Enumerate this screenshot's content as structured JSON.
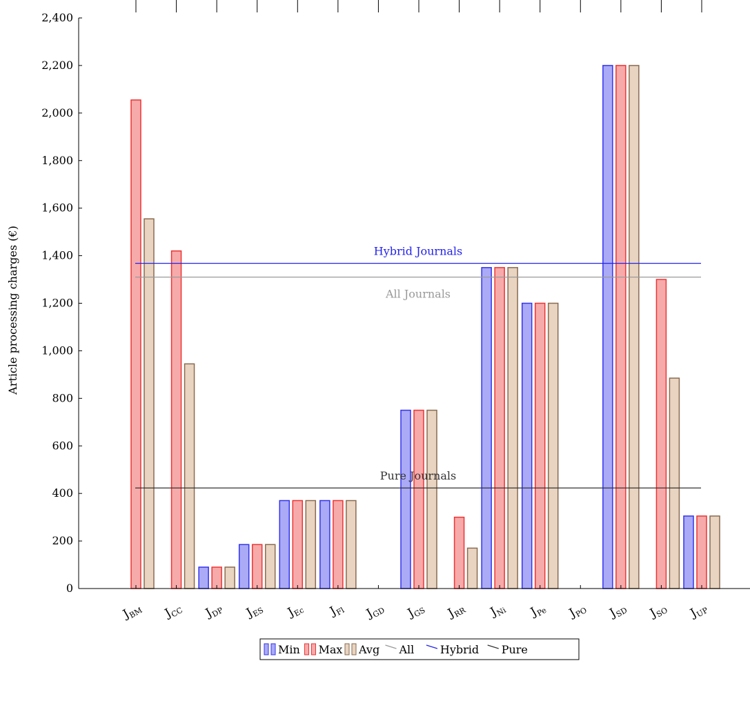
{
  "chart_data": {
    "type": "bar",
    "categories": [
      "BM",
      "CC",
      "DP",
      "ES",
      "Ec",
      "Fl",
      "GD",
      "GS",
      "RR",
      "Ni",
      "Pe",
      "PO",
      "SD",
      "SO",
      "UP"
    ],
    "category_prefix": "J",
    "series": [
      {
        "name": "Min",
        "values": [
          0,
          0,
          90,
          185,
          370,
          370,
          0,
          750,
          0,
          1350,
          1200,
          0,
          2200,
          0,
          305
        ]
      },
      {
        "name": "Max",
        "values": [
          2055,
          1420,
          90,
          185,
          370,
          370,
          0,
          750,
          300,
          1350,
          1200,
          0,
          2200,
          1300,
          305
        ]
      },
      {
        "name": "Avg",
        "values": [
          1555,
          945,
          90,
          185,
          370,
          370,
          0,
          750,
          170,
          1350,
          1200,
          0,
          2200,
          885,
          305
        ]
      }
    ],
    "reference_lines": [
      {
        "name": "All",
        "label": "All Journals",
        "value": 1310
      },
      {
        "name": "Hybrid",
        "label": "Hybrid Journals",
        "value": 1368
      },
      {
        "name": "Pure",
        "label": "Pure Journals",
        "value": 423
      }
    ],
    "ylabel": "Article processing charges (€)",
    "xlabel": "",
    "ylim": [
      0,
      2400
    ],
    "yticks": [
      "0",
      "200",
      "400",
      "600",
      "800",
      "1,000",
      "1,200",
      "1,400",
      "1,600",
      "1,800",
      "2,000",
      "2,200",
      "2,400"
    ],
    "legend_position": "bottom-center",
    "colors": {
      "Min": {
        "fill": "#aaaaf7",
        "stroke": "#3333ee"
      },
      "Max": {
        "fill": "#f7aaaa",
        "stroke": "#ee3333"
      },
      "Avg": {
        "fill": "#e8d4c0",
        "stroke": "#8a6a50"
      },
      "All": "#999999",
      "Hybrid": "#2222ee",
      "Pure": "#333333"
    }
  }
}
